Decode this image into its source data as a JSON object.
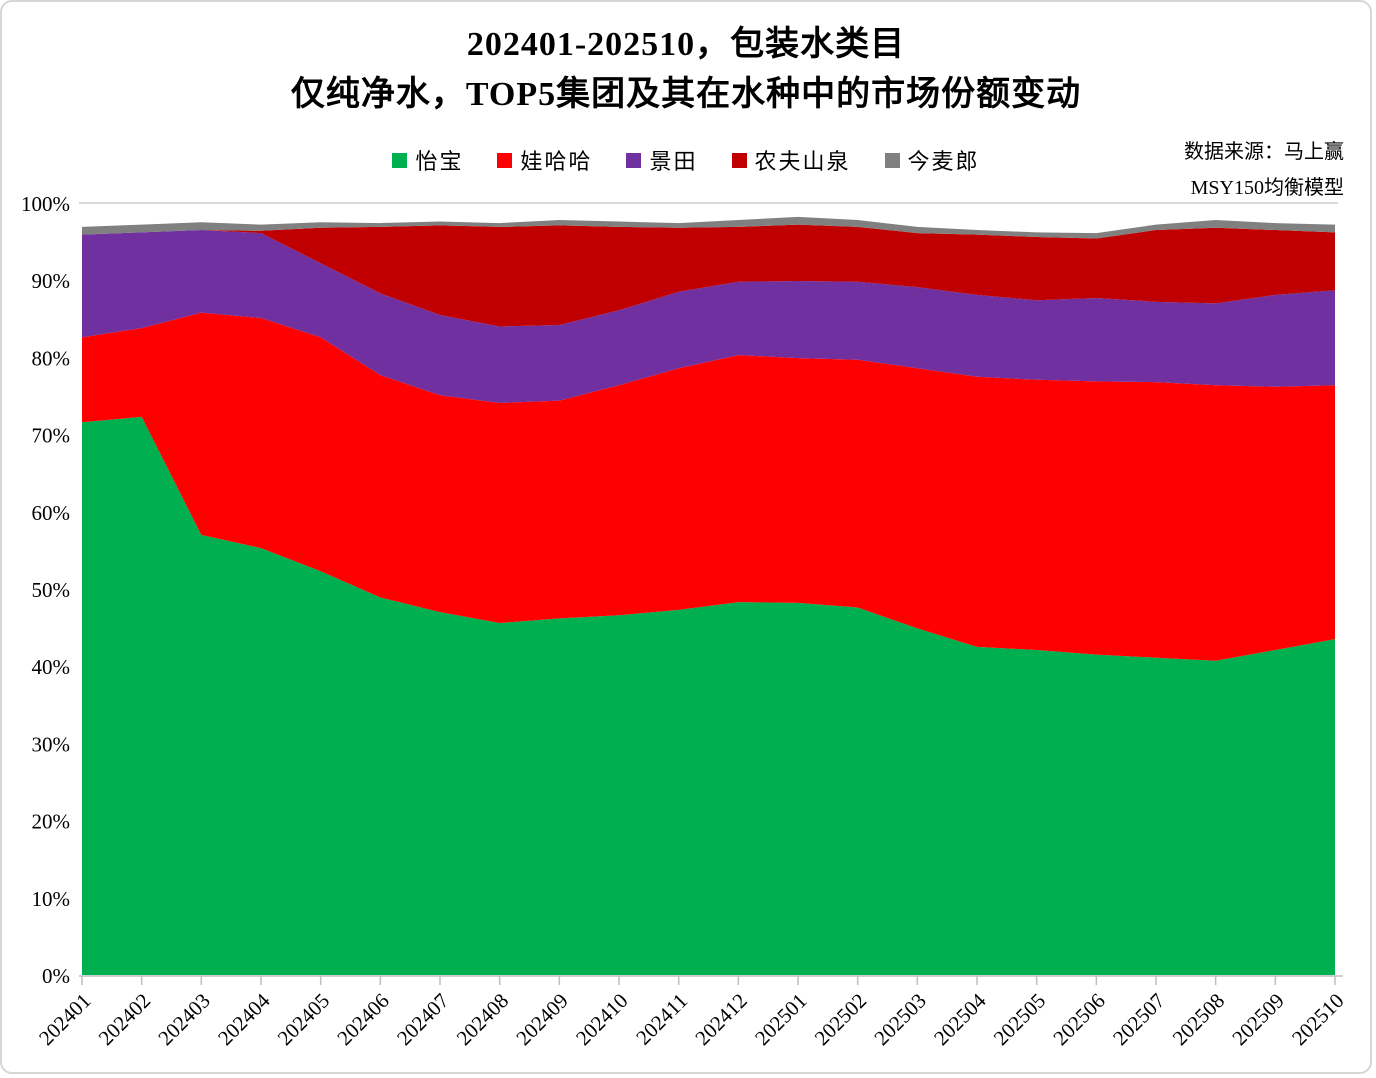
{
  "title": {
    "line1": "202401-202510，包装水类目",
    "line2": "仅纯净水，TOP5集团及其在水种中的市场份额变动"
  },
  "source": {
    "line1": "数据来源：马上赢",
    "line2": "MSY150均衡模型"
  },
  "chart_data": {
    "type": "area",
    "stacked": true,
    "title": "202401-202510，包装水类目 仅纯净水，TOP5集团及其在水种中的市场份额变动",
    "xlabel": "",
    "ylabel": "",
    "ylim": [
      0,
      100
    ],
    "grid": "horizontal line at 100% only",
    "legend_position": "top",
    "y_tick_labels": [
      "0%",
      "10%",
      "20%",
      "30%",
      "40%",
      "50%",
      "60%",
      "70%",
      "80%",
      "90%",
      "100%"
    ],
    "x": [
      "202401",
      "202402",
      "202403",
      "202404",
      "202405",
      "202406",
      "202407",
      "202408",
      "202409",
      "202410",
      "202411",
      "202412",
      "202501",
      "202502",
      "202503",
      "202504",
      "202505",
      "202506",
      "202507",
      "202508",
      "202509",
      "202510"
    ],
    "series": [
      {
        "name": "怡宝",
        "color": "#00B050",
        "values": [
          71.6,
          72.3,
          57.0,
          55.3,
          52.3,
          48.9,
          47.0,
          45.6,
          46.2,
          46.6,
          47.3,
          48.3,
          48.2,
          47.6,
          44.9,
          42.5,
          42.1,
          41.5,
          41.1,
          40.7,
          42.1,
          43.5
        ]
      },
      {
        "name": "娃哈哈",
        "color": "#FF0000",
        "values": [
          11.0,
          11.5,
          28.8,
          29.8,
          30.3,
          28.8,
          28.1,
          28.5,
          28.2,
          29.8,
          31.3,
          32.0,
          31.7,
          32.1,
          33.7,
          35.0,
          35.0,
          35.4,
          35.7,
          35.7,
          34.1,
          32.9
        ]
      },
      {
        "name": "景田",
        "color": "#7030A0",
        "values": [
          13.3,
          12.4,
          10.7,
          11.0,
          9.6,
          10.6,
          10.4,
          9.9,
          9.8,
          9.7,
          9.9,
          9.5,
          10.0,
          10.1,
          10.5,
          10.6,
          10.3,
          10.8,
          10.4,
          10.6,
          11.9,
          12.3
        ]
      },
      {
        "name": "农夫山泉",
        "color": "#C00000",
        "values": [
          0.0,
          0.0,
          0.0,
          0.3,
          4.6,
          8.6,
          11.6,
          12.9,
          12.9,
          10.8,
          8.3,
          7.1,
          7.3,
          7.1,
          7.0,
          7.8,
          8.2,
          7.7,
          9.3,
          9.8,
          8.4,
          7.5
        ]
      },
      {
        "name": "今麦郎",
        "color": "#808080",
        "values": [
          1.0,
          1.0,
          1.0,
          0.8,
          0.7,
          0.5,
          0.5,
          0.5,
          0.7,
          0.7,
          0.6,
          0.9,
          1.0,
          0.9,
          0.8,
          0.6,
          0.6,
          0.7,
          0.7,
          1.0,
          0.9,
          1.0
        ]
      }
    ],
    "colors": {
      "gridline": "#d9d9d9",
      "axis": "#bfbfbf"
    }
  }
}
